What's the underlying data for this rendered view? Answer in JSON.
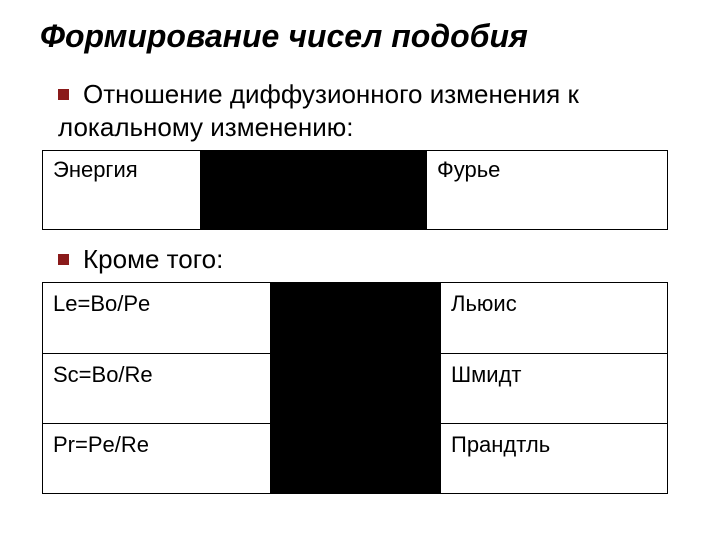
{
  "title": "Формирование чисел подобия",
  "subtitle": "Отношение диффузионного изменения к локальному изменению:",
  "table1": {
    "col1": "Энергия",
    "col3": "Фурье"
  },
  "subtitle2": "Кроме того:",
  "table2": {
    "rows": [
      {
        "c1": "Le=Bo/Pe",
        "c3": "Льюис"
      },
      {
        "c1": "Sc=Bo/Re",
        "c3": "Шмидт"
      },
      {
        "c1": "Pr=Pe/Re",
        "c3": "Прандтль"
      }
    ]
  },
  "colors": {
    "bullet": "#8a1a1a",
    "border": "#000000",
    "text": "#000000",
    "blackbox": "#000000",
    "background": "#ffffff"
  }
}
